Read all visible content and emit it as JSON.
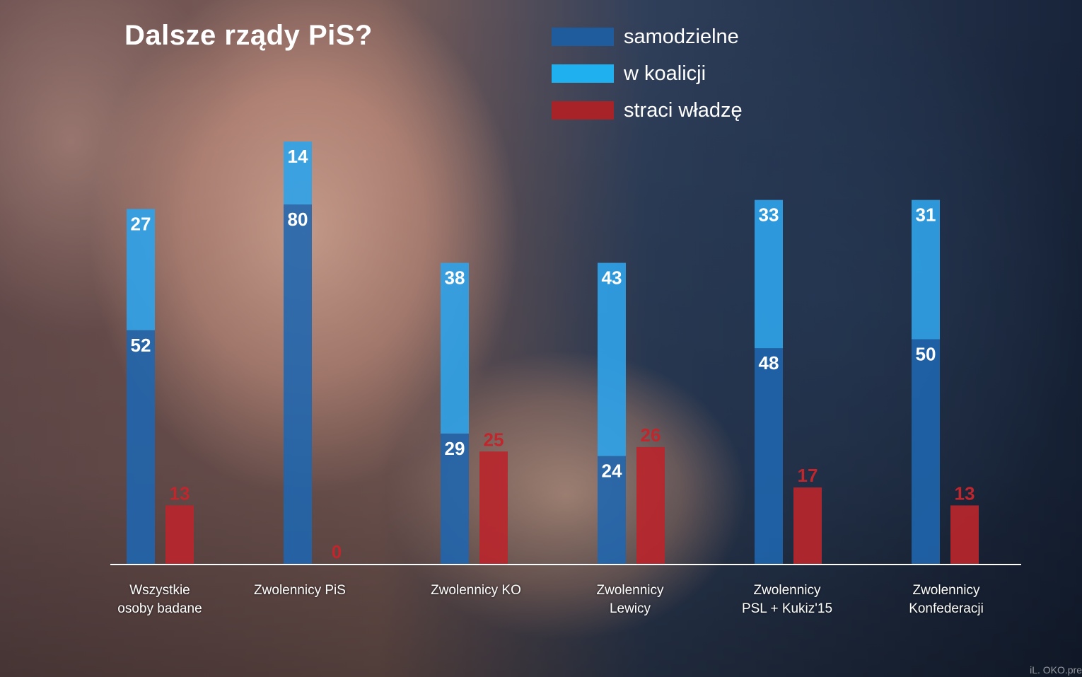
{
  "chart_data": {
    "type": "bar",
    "title": "Dalsze rządy PiS?",
    "categories": [
      "Wszystkie\nosoby badane",
      "Zwolennicy PiS",
      "Zwolennicy KO",
      "Zwolennicy\nLewicy",
      "Zwolennicy\nPSL + Kukiz'15",
      "Zwolennicy\nKonfederacji"
    ],
    "series": [
      {
        "name": "samodzielne",
        "values": [
          52,
          80,
          29,
          24,
          48,
          50
        ],
        "color": "#1f67b0"
      },
      {
        "name": "w koalicji",
        "values": [
          27,
          14,
          38,
          43,
          33,
          31
        ],
        "color": "#2fa3ea"
      },
      {
        "name": "straci władzę",
        "values": [
          13,
          0,
          25,
          26,
          17,
          13
        ],
        "color": "#b8262c"
      }
    ],
    "stacked_series": [
      "samodzielne",
      "w koalicji"
    ],
    "legend_position": "top-right",
    "ylim": [
      0,
      100
    ],
    "grid": false
  },
  "credit": "iL. OKO.pre",
  "colors": {
    "value_label_blue": "#ffffff",
    "value_label_red": "#c0262c"
  }
}
